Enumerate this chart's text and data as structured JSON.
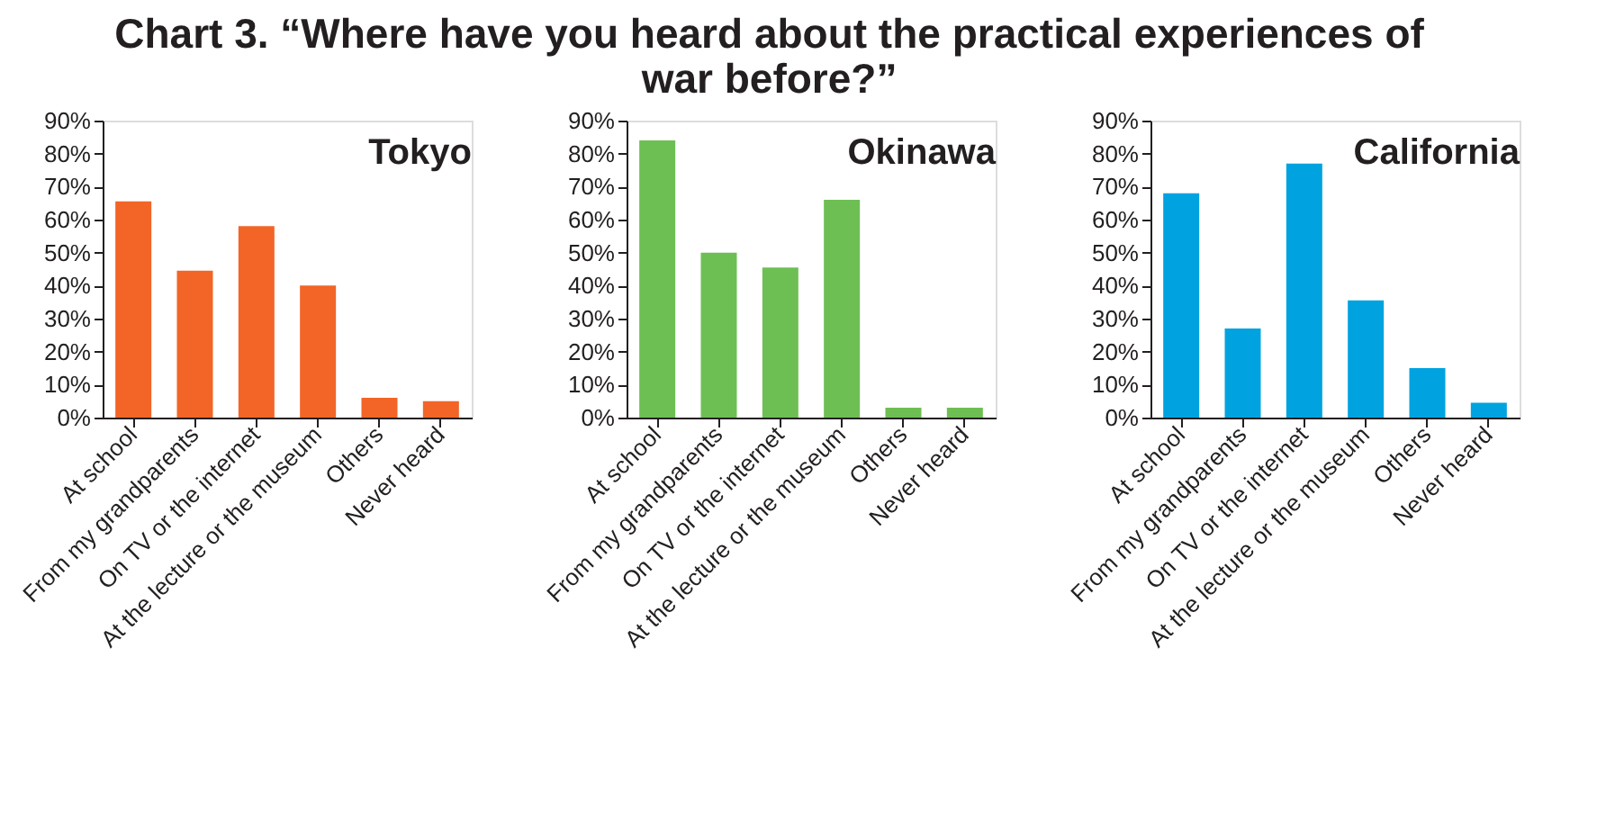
{
  "chart_data": [
    {
      "type": "bar",
      "title": "Chart 3. “Where have you heard about the practical experiences of war before?”",
      "categories": [
        "At school",
        "From my grandparents",
        "On TV or the internet",
        "At the lecture or the museum",
        "Others",
        "Never heard"
      ],
      "series": [
        {
          "name": "Tokyo",
          "color": "#f26527",
          "values": [
            65.5,
            44.5,
            58,
            40,
            6,
            5
          ]
        }
      ],
      "ylim": [
        0,
        90
      ],
      "yticks": [
        {
          "value": 0,
          "label": "0%"
        },
        {
          "value": 10,
          "label": "10%"
        },
        {
          "value": 20,
          "label": "20%"
        },
        {
          "value": 30,
          "label": "30%"
        },
        {
          "value": 40,
          "label": "40%"
        },
        {
          "value": 50,
          "label": "50%"
        },
        {
          "value": 60,
          "label": "60%"
        },
        {
          "value": 70,
          "label": "70%"
        },
        {
          "value": 80,
          "label": "80%"
        },
        {
          "value": 90,
          "label": "90%"
        }
      ],
      "grid": false
    },
    {
      "type": "bar",
      "categories": [
        "At school",
        "From my grandparents",
        "On TV or the internet",
        "At the lecture or the museum",
        "Others",
        "Never heard"
      ],
      "series": [
        {
          "name": "Okinawa",
          "color": "#6dbf53",
          "values": [
            84,
            50,
            45.5,
            66,
            3,
            3
          ]
        }
      ],
      "ylim": [
        0,
        90
      ],
      "yticks": [
        {
          "value": 0,
          "label": "0%"
        },
        {
          "value": 10,
          "label": "10%"
        },
        {
          "value": 20,
          "label": "20%"
        },
        {
          "value": 30,
          "label": "30%"
        },
        {
          "value": 40,
          "label": "40%"
        },
        {
          "value": 50,
          "label": "50%"
        },
        {
          "value": 60,
          "label": "60%"
        },
        {
          "value": 70,
          "label": "70%"
        },
        {
          "value": 80,
          "label": "80%"
        },
        {
          "value": 90,
          "label": "90%"
        }
      ],
      "grid": false
    },
    {
      "type": "bar",
      "categories": [
        "At school",
        "From my grandparents",
        "On TV or the internet",
        "At the lecture or the museum",
        "Others",
        "Never heard"
      ],
      "series": [
        {
          "name": "California",
          "color": "#00a3e0",
          "values": [
            68,
            27,
            77,
            35.5,
            15,
            4.5
          ]
        }
      ],
      "ylim": [
        0,
        90
      ],
      "yticks": [
        {
          "value": 0,
          "label": "0%"
        },
        {
          "value": 10,
          "label": "10%"
        },
        {
          "value": 20,
          "label": "20%"
        },
        {
          "value": 30,
          "label": "30%"
        },
        {
          "value": 40,
          "label": "40%"
        },
        {
          "value": 50,
          "label": "50%"
        },
        {
          "value": 60,
          "label": "60%"
        },
        {
          "value": 70,
          "label": "70%"
        },
        {
          "value": 80,
          "label": "80%"
        },
        {
          "value": 90,
          "label": "90%"
        }
      ],
      "grid": false
    }
  ]
}
